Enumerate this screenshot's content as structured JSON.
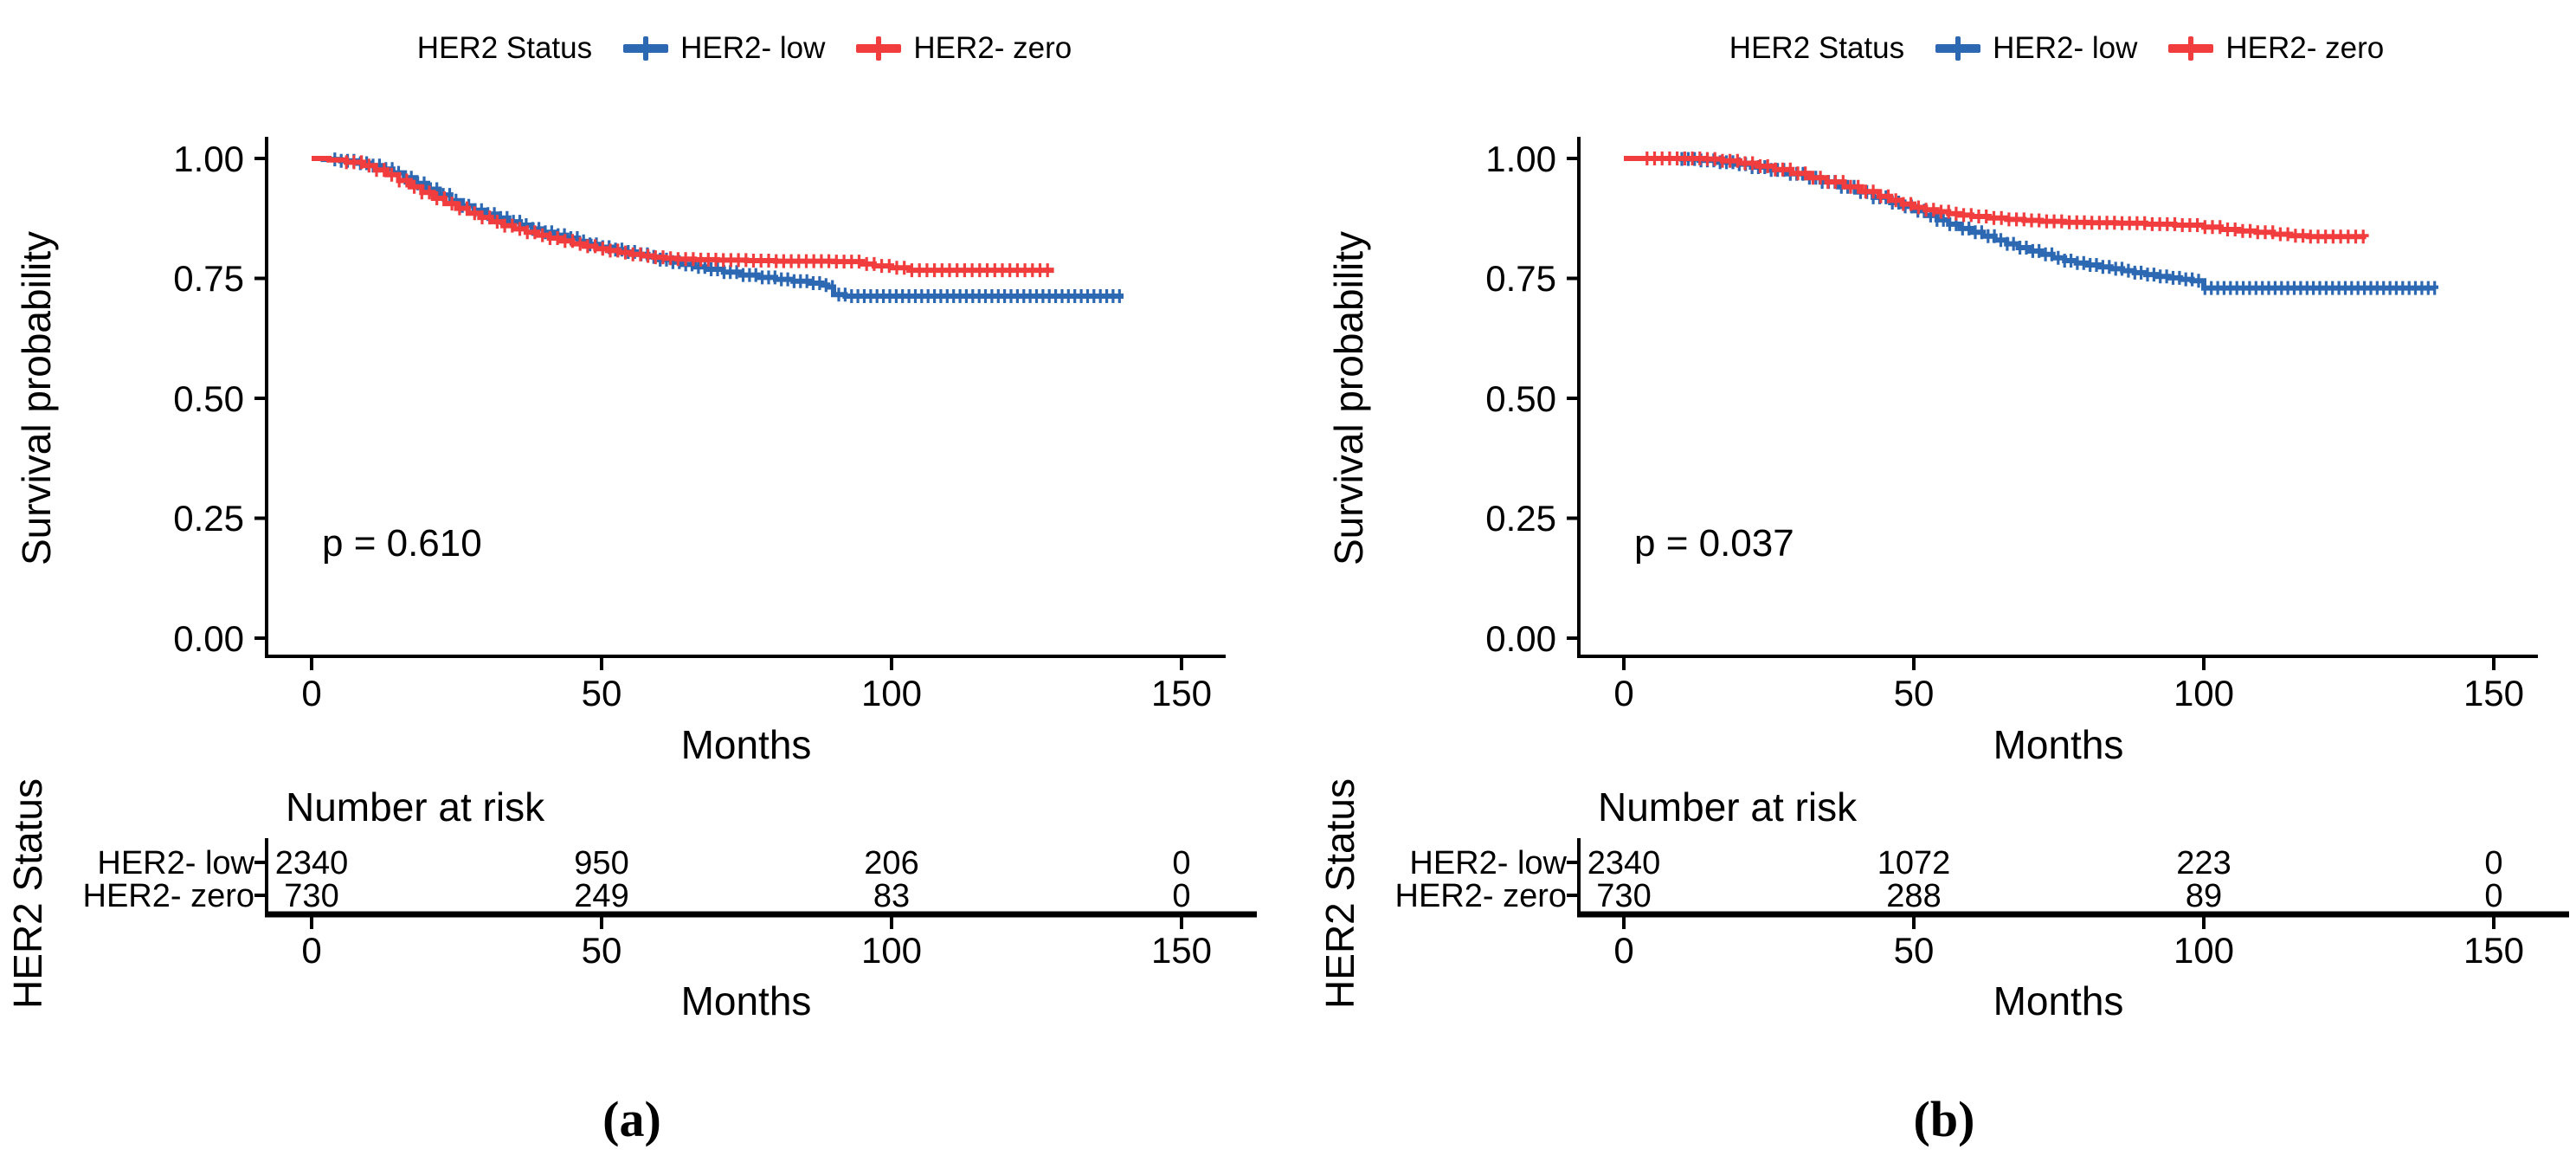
{
  "figure": {
    "background": "#ffffff",
    "kind": "Kaplan-Meier survival curves, two panels with number-at-risk tables"
  },
  "chart_data": [
    {
      "type": "line",
      "subtype": "kaplan-meier-survival",
      "panel_label": "(a)",
      "p_value": "p = 0.610",
      "xlabel": "Months",
      "ylabel": "Survival probability",
      "xlim": [
        0,
        157
      ],
      "ylim": [
        0,
        1.0
      ],
      "grid": false,
      "x_ticks": [
        0,
        50,
        100,
        150
      ],
      "x_tick_labels": [
        "0",
        "50",
        "100",
        "150"
      ],
      "y_ticks": [
        1.0,
        0.75,
        0.5,
        0.25,
        0.0
      ],
      "y_tick_labels": [
        "1.00",
        "0.75",
        "0.50",
        "0.25",
        "0.00"
      ],
      "legend": {
        "position": "top",
        "title": "HER2 Status",
        "entries": [
          {
            "label": "HER2- low",
            "color": "#2D68B3"
          },
          {
            "label": "HER2- zero",
            "color": "#F13D3D"
          }
        ]
      },
      "series": [
        {
          "name": "HER2- low",
          "color": "#2D68B3",
          "censor_start": 4,
          "censor_interval": 1.1,
          "points": [
            [
              0,
              1.0
            ],
            [
              2,
              0.998
            ],
            [
              5,
              0.995
            ],
            [
              8,
              0.99
            ],
            [
              10,
              0.985
            ],
            [
              12,
              0.978
            ],
            [
              14,
              0.97
            ],
            [
              16,
              0.96
            ],
            [
              18,
              0.948
            ],
            [
              20,
              0.936
            ],
            [
              22,
              0.924
            ],
            [
              24,
              0.912
            ],
            [
              26,
              0.901
            ],
            [
              28,
              0.892
            ],
            [
              30,
              0.884
            ],
            [
              32,
              0.876
            ],
            [
              34,
              0.868
            ],
            [
              36,
              0.861
            ],
            [
              38,
              0.853
            ],
            [
              40,
              0.846
            ],
            [
              42,
              0.84
            ],
            [
              44,
              0.834
            ],
            [
              46,
              0.827
            ],
            [
              48,
              0.821
            ],
            [
              50,
              0.815
            ],
            [
              52,
              0.81
            ],
            [
              54,
              0.805
            ],
            [
              56,
              0.8
            ],
            [
              58,
              0.795
            ],
            [
              60,
              0.789
            ],
            [
              62,
              0.784
            ],
            [
              64,
              0.779
            ],
            [
              66,
              0.774
            ],
            [
              68,
              0.769
            ],
            [
              71,
              0.763
            ],
            [
              74,
              0.757
            ],
            [
              77,
              0.752
            ],
            [
              80,
              0.748
            ],
            [
              83,
              0.744
            ],
            [
              86,
              0.74
            ],
            [
              88,
              0.736
            ],
            [
              89,
              0.732
            ],
            [
              90,
              0.716
            ],
            [
              92,
              0.713
            ],
            [
              140,
              0.713
            ]
          ]
        },
        {
          "name": "HER2- zero",
          "color": "#F13D3D",
          "censor_start": 6,
          "censor_interval": 1.3,
          "points": [
            [
              0,
              1.0
            ],
            [
              3,
              0.997
            ],
            [
              6,
              0.992
            ],
            [
              9,
              0.985
            ],
            [
              11,
              0.976
            ],
            [
              13,
              0.966
            ],
            [
              15,
              0.954
            ],
            [
              17,
              0.941
            ],
            [
              19,
              0.929
            ],
            [
              21,
              0.917
            ],
            [
              23,
              0.906
            ],
            [
              25,
              0.896
            ],
            [
              27,
              0.886
            ],
            [
              29,
              0.877
            ],
            [
              31,
              0.868
            ],
            [
              33,
              0.86
            ],
            [
              35,
              0.853
            ],
            [
              37,
              0.846
            ],
            [
              39,
              0.84
            ],
            [
              41,
              0.834
            ],
            [
              43,
              0.828
            ],
            [
              45,
              0.822
            ],
            [
              47,
              0.817
            ],
            [
              49,
              0.812
            ],
            [
              51,
              0.808
            ],
            [
              53,
              0.804
            ],
            [
              55,
              0.8
            ],
            [
              57,
              0.797
            ],
            [
              59,
              0.794
            ],
            [
              61,
              0.792
            ],
            [
              63,
              0.79
            ],
            [
              66,
              0.789
            ],
            [
              70,
              0.788
            ],
            [
              75,
              0.787
            ],
            [
              80,
              0.786
            ],
            [
              85,
              0.786
            ],
            [
              90,
              0.785
            ],
            [
              95,
              0.78
            ],
            [
              97,
              0.776
            ],
            [
              100,
              0.772
            ],
            [
              103,
              0.767
            ],
            [
              128,
              0.767
            ]
          ]
        }
      ],
      "risk_table": {
        "title": "Number at risk",
        "axis_label": "HER2 Status",
        "columns": [
          0,
          50,
          100,
          150
        ],
        "rows": [
          {
            "label": "HER2- low",
            "color": "#2D68B3",
            "values": [
              "2340",
              "950",
              "206",
              "0"
            ]
          },
          {
            "label": "HER2- zero",
            "color": "#F13D3D",
            "values": [
              "730",
              "249",
              "83",
              "0"
            ]
          }
        ]
      }
    },
    {
      "type": "line",
      "subtype": "kaplan-meier-survival",
      "panel_label": "(b)",
      "p_value": "p = 0.037",
      "xlabel": "Months",
      "ylabel": "Survival probability",
      "xlim": [
        0,
        157
      ],
      "ylim": [
        0,
        1.0
      ],
      "grid": false,
      "x_ticks": [
        0,
        50,
        100,
        150
      ],
      "x_tick_labels": [
        "0",
        "50",
        "100",
        "150"
      ],
      "y_ticks": [
        1.0,
        0.75,
        0.5,
        0.25,
        0.0
      ],
      "y_tick_labels": [
        "1.00",
        "0.75",
        "0.50",
        "0.25",
        "0.00"
      ],
      "legend": {
        "position": "top",
        "title": "HER2 Status",
        "entries": [
          {
            "label": "HER2- low",
            "color": "#2D68B3"
          },
          {
            "label": "HER2- zero",
            "color": "#F13D3D"
          }
        ]
      },
      "series": [
        {
          "name": "HER2- low",
          "color": "#2D68B3",
          "censor_start": 10,
          "censor_interval": 1.1,
          "points": [
            [
              0,
              1.0
            ],
            [
              10,
              0.999
            ],
            [
              13,
              0.996
            ],
            [
              16,
              0.992
            ],
            [
              19,
              0.988
            ],
            [
              22,
              0.982
            ],
            [
              25,
              0.976
            ],
            [
              28,
              0.968
            ],
            [
              31,
              0.96
            ],
            [
              34,
              0.951
            ],
            [
              37,
              0.941
            ],
            [
              40,
              0.93
            ],
            [
              43,
              0.919
            ],
            [
              46,
              0.908
            ],
            [
              48,
              0.9
            ],
            [
              50,
              0.891
            ],
            [
              52,
              0.881
            ],
            [
              54,
              0.872
            ],
            [
              56,
              0.863
            ],
            [
              58,
              0.854
            ],
            [
              60,
              0.846
            ],
            [
              62,
              0.838
            ],
            [
              64,
              0.83
            ],
            [
              66,
              0.822
            ],
            [
              68,
              0.814
            ],
            [
              70,
              0.807
            ],
            [
              72,
              0.8
            ],
            [
              74,
              0.793
            ],
            [
              76,
              0.787
            ],
            [
              78,
              0.782
            ],
            [
              80,
              0.778
            ],
            [
              82,
              0.774
            ],
            [
              84,
              0.77
            ],
            [
              86,
              0.766
            ],
            [
              88,
              0.762
            ],
            [
              90,
              0.758
            ],
            [
              92,
              0.754
            ],
            [
              94,
              0.751
            ],
            [
              96,
              0.748
            ],
            [
              98,
              0.745
            ],
            [
              100,
              0.73
            ],
            [
              140,
              0.728
            ]
          ]
        },
        {
          "name": "HER2- zero",
          "color": "#F13D3D",
          "censor_start": 4,
          "censor_interval": 1.3,
          "points": [
            [
              0,
              1.0
            ],
            [
              14,
              0.999
            ],
            [
              17,
              0.995
            ],
            [
              20,
              0.99
            ],
            [
              23,
              0.984
            ],
            [
              26,
              0.977
            ],
            [
              29,
              0.969
            ],
            [
              32,
              0.96
            ],
            [
              35,
              0.951
            ],
            [
              38,
              0.941
            ],
            [
              41,
              0.931
            ],
            [
              44,
              0.921
            ],
            [
              46,
              0.913
            ],
            [
              48,
              0.905
            ],
            [
              50,
              0.898
            ],
            [
              52,
              0.893
            ],
            [
              54,
              0.889
            ],
            [
              56,
              0.885
            ],
            [
              58,
              0.882
            ],
            [
              60,
              0.879
            ],
            [
              63,
              0.876
            ],
            [
              66,
              0.873
            ],
            [
              69,
              0.871
            ],
            [
              72,
              0.869
            ],
            [
              76,
              0.867
            ],
            [
              80,
              0.866
            ],
            [
              85,
              0.865
            ],
            [
              90,
              0.863
            ],
            [
              95,
              0.861
            ],
            [
              100,
              0.857
            ],
            [
              103,
              0.852
            ],
            [
              106,
              0.849
            ],
            [
              109,
              0.846
            ],
            [
              112,
              0.842
            ],
            [
              115,
              0.839
            ],
            [
              118,
              0.837
            ],
            [
              128,
              0.836
            ]
          ]
        }
      ],
      "risk_table": {
        "title": "Number at risk",
        "axis_label": "HER2 Status",
        "columns": [
          0,
          50,
          100,
          150
        ],
        "rows": [
          {
            "label": "HER2- low",
            "color": "#2D68B3",
            "values": [
              "2340",
              "1072",
              "223",
              "0"
            ]
          },
          {
            "label": "HER2- zero",
            "color": "#F13D3D",
            "values": [
              "730",
              "288",
              "89",
              "0"
            ]
          }
        ]
      }
    }
  ]
}
